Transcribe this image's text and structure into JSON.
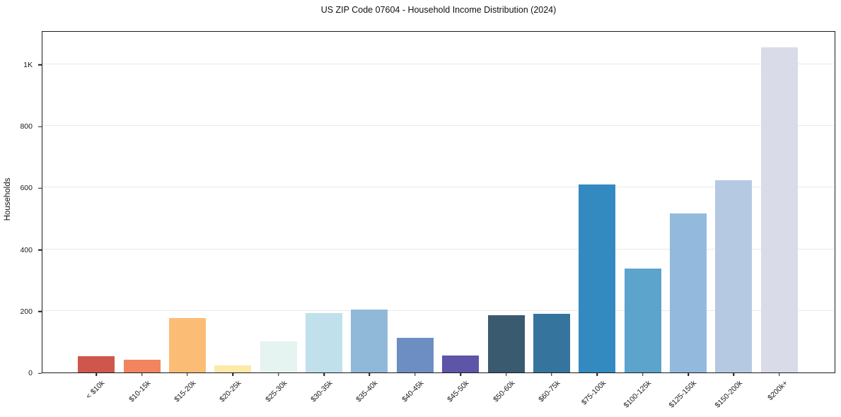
{
  "chart_data": {
    "type": "bar",
    "title": "US ZIP Code 07604 - Household Income Distribution (2024)",
    "xlabel": "",
    "ylabel": "Households",
    "categories": [
      "< $10k",
      "$10-15k",
      "$15-20k",
      "$20-25k",
      "$25-30k",
      "$30-35k",
      "$35-40k",
      "$40-45k",
      "$45-50k",
      "$50-60k",
      "$60-75k",
      "$75-100k",
      "$100-125k",
      "$125-150k",
      "$150-200k",
      "$200k+"
    ],
    "values": [
      52,
      42,
      176,
      24,
      101,
      192,
      204,
      112,
      54,
      186,
      190,
      609,
      338,
      516,
      624,
      1056
    ],
    "bar_colors": [
      "#cf564d",
      "#f0855f",
      "#fbbd75",
      "#fdeaa9",
      "#e5f3f1",
      "#c0e0ec",
      "#90b9d9",
      "#6c8ec2",
      "#5d55a7",
      "#3a5a6f",
      "#35759d",
      "#338ac0",
      "#5ca4cc",
      "#93badc",
      "#b6c9e2",
      "#d9dbe8"
    ],
    "yticks": [
      {
        "value": 0,
        "label": "0"
      },
      {
        "value": 200,
        "label": "200"
      },
      {
        "value": 400,
        "label": "400"
      },
      {
        "value": 600,
        "label": "600"
      },
      {
        "value": 800,
        "label": "800"
      },
      {
        "value": 1000,
        "label": "1K"
      }
    ],
    "ylim": [
      0,
      1110
    ],
    "grid": "horizontal",
    "legend": "none",
    "background_color": "#ffffff",
    "spine_color": "#1b1b1b",
    "gridline_color": "#e9e9e9"
  }
}
